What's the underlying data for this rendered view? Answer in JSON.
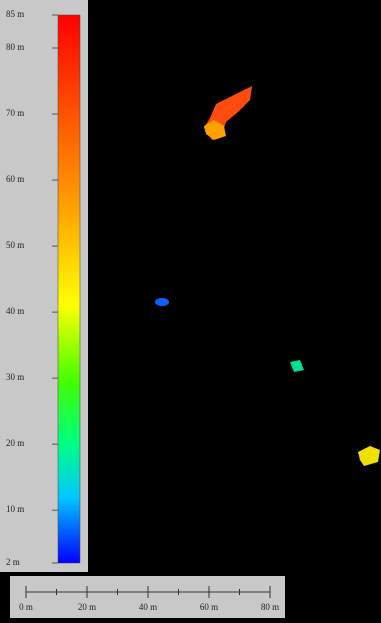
{
  "colorbar": {
    "min": 2,
    "max": 85,
    "ticks": [
      {
        "value": 85,
        "label": "85 m"
      },
      {
        "value": 80,
        "label": "80 m"
      },
      {
        "value": 70,
        "label": "70 m"
      },
      {
        "value": 60,
        "label": "60 m"
      },
      {
        "value": 50,
        "label": "50 m"
      },
      {
        "value": 40,
        "label": "40 m"
      },
      {
        "value": 30,
        "label": "30 m"
      },
      {
        "value": 20,
        "label": "20 m"
      },
      {
        "value": 10,
        "label": "10 m"
      },
      {
        "value": 2,
        "label": "2 m"
      }
    ]
  },
  "scalebar": {
    "min": 0,
    "max": 80,
    "ticks": [
      {
        "value": 0,
        "label": "0 m"
      },
      {
        "value": 20,
        "label": "20 m"
      },
      {
        "value": 40,
        "label": "40 m"
      },
      {
        "value": 60,
        "label": "60 m"
      },
      {
        "value": 80,
        "label": "80 m"
      }
    ]
  }
}
